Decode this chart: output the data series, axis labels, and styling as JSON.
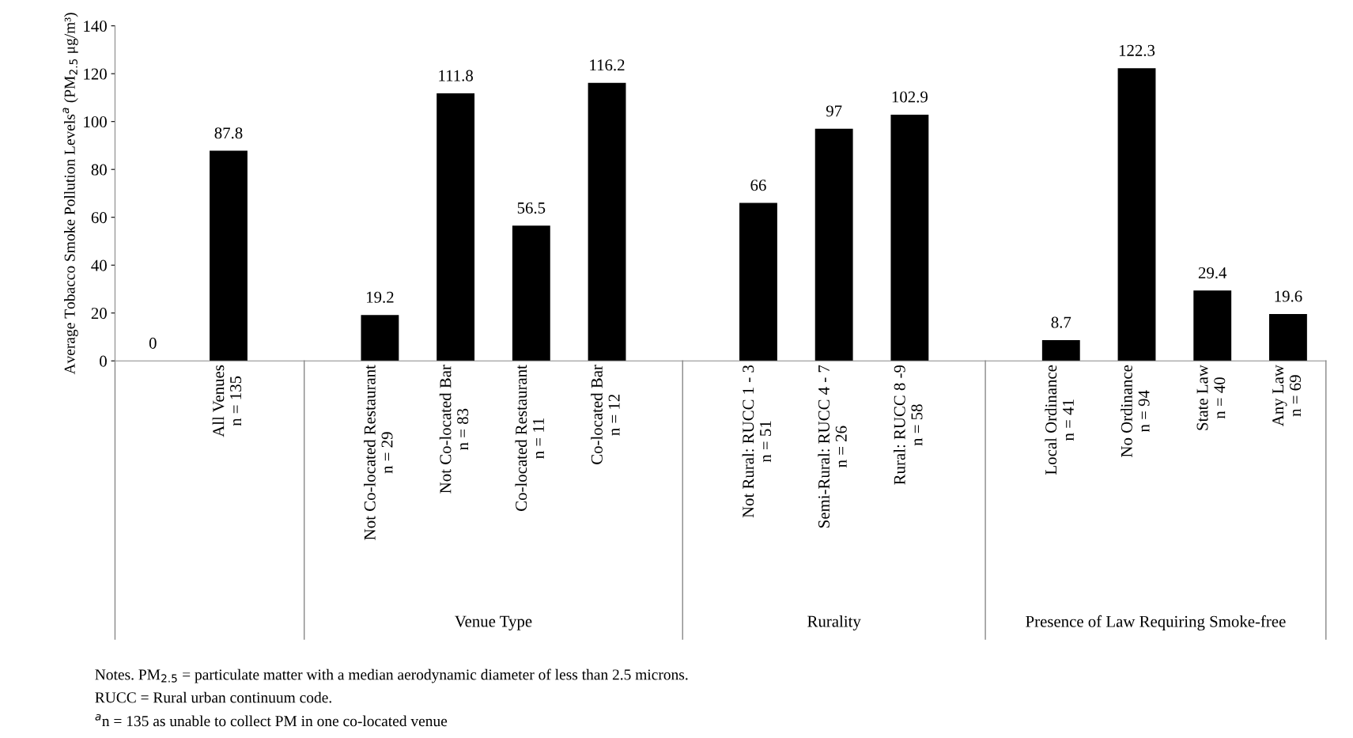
{
  "chart_data": {
    "type": "bar",
    "ylabel": "Average Tobacco Smoke Pollution Levels$^{a}$ (PM$_{2.5}$ μg/m³)",
    "categories": [
      null,
      "All Venues\nn = 135",
      null,
      "Not Co-located Restaurant\nn = 29",
      "Not Co-located Bar\nn = 83",
      "Co-located Restaurant\nn = 11",
      "Co-located Bar\nn = 12",
      null,
      "Not Rural: RUCC 1 - 3\nn = 51",
      "Semi-Rural: RUCC 4 - 7\nn = 26",
      "Rural: RUCC 8 -9\nn = 58",
      null,
      "Local Ordinance\nn = 41",
      "No Ordinance\nn = 94",
      "State Law\nn = 40",
      "Any Law\nn = 69"
    ],
    "values": [
      0,
      87.8,
      null,
      19.2,
      111.8,
      56.5,
      116.2,
      null,
      66,
      97,
      102.9,
      null,
      8.7,
      122.3,
      29.4,
      19.6
    ],
    "color": "#000000",
    "ylim": [
      0,
      140
    ],
    "yticks": [
      0,
      20,
      40,
      60,
      80,
      100,
      120,
      140
    ],
    "data_labels": true,
    "grid": false,
    "annotations": [
      "Venue Type",
      "Rurality",
      "Presence of Law Requiring Smoke-free",
      "Notes. PM$_{2.5}$ = particulate matter with a median aerodynamic diameter of less than 2.5 microns.",
      "RUCC = Rural urban continuum code.",
      "$^{a}$n = 135 as unable to collect PM in one co-located venue"
    ]
  }
}
